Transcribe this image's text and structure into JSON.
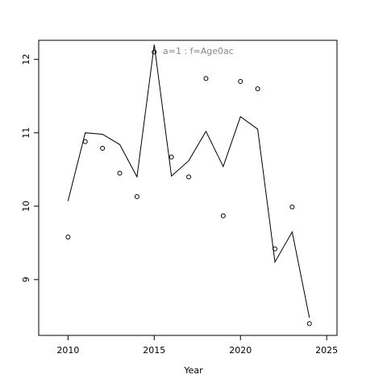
{
  "chart_data": {
    "type": "line",
    "annotation": "a=1  :  f=Age0ac",
    "x_label": "Year",
    "x": [
      2010,
      2011,
      2012,
      2013,
      2014,
      2015,
      2016,
      2017,
      2018,
      2019,
      2020,
      2021,
      2022,
      2023,
      2024
    ],
    "series": [
      {
        "style": "line",
        "color": "#000000",
        "values": [
          10.07,
          11.0,
          10.98,
          10.84,
          10.4,
          12.2,
          10.41,
          10.62,
          11.02,
          10.54,
          11.22,
          11.05,
          9.24,
          9.65,
          8.48
        ]
      },
      {
        "style": "points",
        "color": "#000000",
        "values": [
          9.58,
          10.88,
          10.79,
          10.45,
          10.13,
          12.1,
          10.67,
          10.4,
          11.74,
          9.87,
          11.7,
          11.6,
          9.42,
          9.99,
          8.4
        ]
      }
    ],
    "xlim": [
      2008.3,
      2025.6
    ],
    "xticks": [
      2010,
      2015,
      2020,
      2025
    ],
    "ylim": [
      8.24,
      12.26
    ],
    "yticks": [
      9,
      10,
      11,
      12
    ]
  }
}
